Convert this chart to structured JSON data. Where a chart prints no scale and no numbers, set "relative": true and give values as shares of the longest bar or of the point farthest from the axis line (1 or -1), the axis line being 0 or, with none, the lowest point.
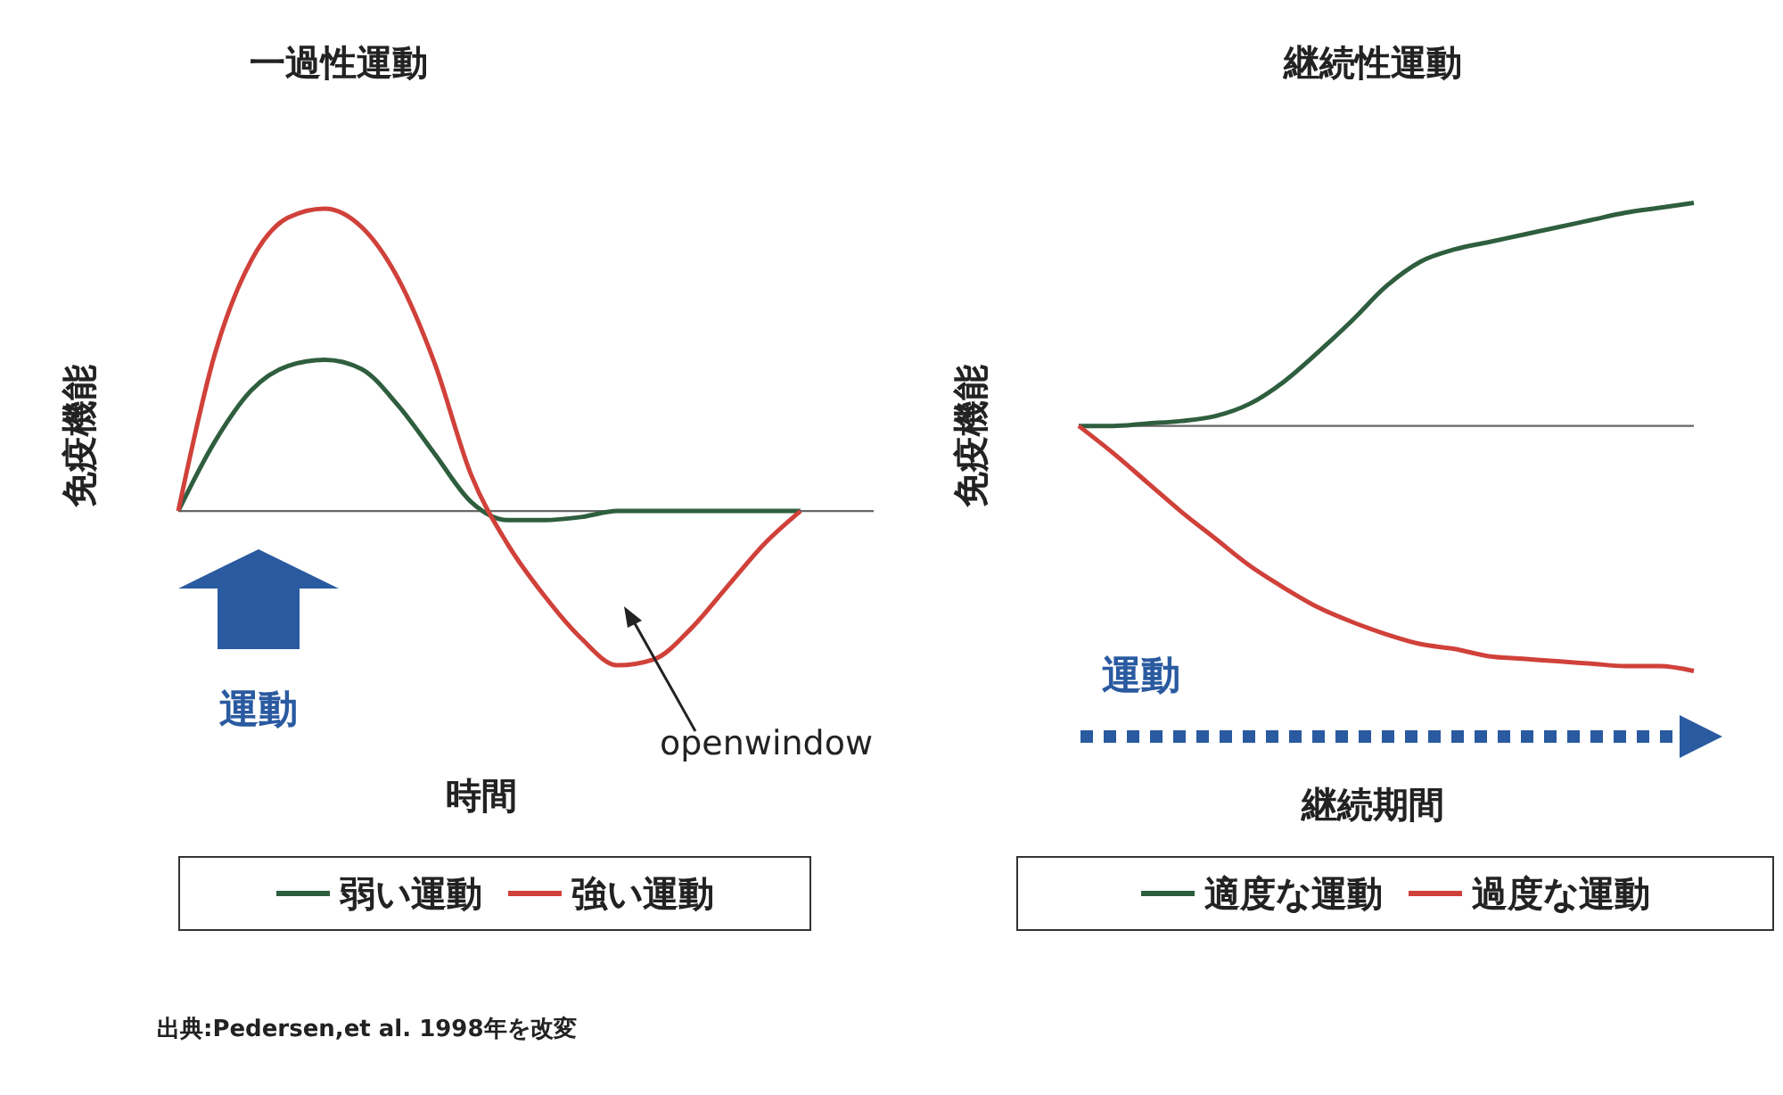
{
  "chart_data": [
    {
      "type": "line",
      "title": "一過性運動",
      "ylabel": "免疫機能",
      "xlabel": "時間",
      "relative": true,
      "legend": "bottom",
      "categories": [
        null,
        null,
        null,
        null,
        null,
        null,
        null,
        null,
        null,
        null,
        null,
        null,
        null,
        null,
        null,
        null,
        null,
        null,
        null,
        null
      ],
      "series": [
        {
          "name": "弱い運動",
          "color": "#2e5e3e",
          "values": [
            0,
            0.23,
            0.4,
            0.48,
            0.5,
            0.47,
            0.35,
            0.19,
            0.03,
            -0.03,
            -0.03,
            -0.02,
            0,
            0,
            0,
            0,
            0,
            0,
            null,
            null
          ]
        },
        {
          "name": "強い運動",
          "color": "#d0413a",
          "values": [
            0,
            0.52,
            0.83,
            0.97,
            1,
            0.94,
            0.77,
            0.49,
            0.12,
            -0.11,
            -0.28,
            -0.42,
            -0.51,
            -0.49,
            -0.39,
            -0.25,
            -0.11,
            0,
            null,
            null
          ]
        }
      ],
      "annotations": [
        "運動",
        "openwindow",
        "出典:Pedersen,et al. 1998年を改変"
      ]
    },
    {
      "type": "line",
      "title": "継続性運動",
      "ylabel": "免疫機能",
      "xlabel": "継続期間",
      "relative": true,
      "legend": "bottom",
      "categories": [
        null,
        null,
        null,
        null,
        null,
        null,
        null,
        null,
        null,
        null,
        null,
        null,
        null,
        null,
        null,
        null,
        null,
        null,
        null
      ],
      "series": [
        {
          "name": "適度な運動",
          "color": "#2e5e3e",
          "values": [
            0,
            0,
            0.01,
            0.02,
            0.04,
            0.09,
            0.18,
            0.3,
            0.43,
            0.57,
            0.67,
            0.72,
            0.75,
            0.78,
            0.81,
            0.84,
            0.87,
            0.89,
            0.91
          ]
        },
        {
          "name": "過度な運動",
          "color": "#d0413a",
          "values": [
            0,
            -0.11,
            -0.23,
            -0.35,
            -0.46,
            -0.57,
            -0.66,
            -0.74,
            -0.8,
            -0.85,
            -0.89,
            -0.91,
            -0.94,
            -0.95,
            -0.96,
            -0.97,
            -0.98,
            -0.98,
            -1
          ]
        }
      ],
      "annotations": [
        "運動"
      ]
    }
  ]
}
